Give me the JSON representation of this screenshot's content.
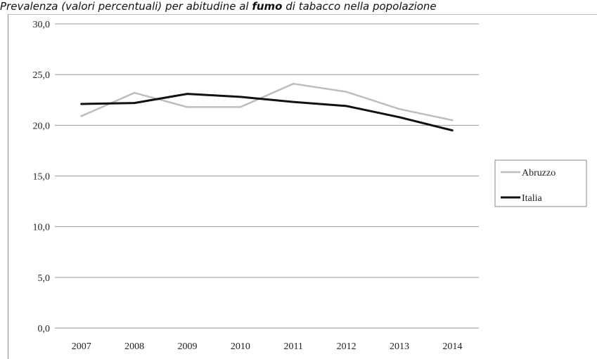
{
  "title": {
    "before": "Prevalenza (valori percentuali) per abitudine al ",
    "emphasis": "fumo",
    "after": " di tabacco nella popolazione"
  },
  "chart_data": {
    "type": "line",
    "categories": [
      "2007",
      "2008",
      "2009",
      "2010",
      "2011",
      "2012",
      "2013",
      "2014"
    ],
    "series": [
      {
        "name": "Abruzzo",
        "color": "#bdbdbd",
        "values": [
          20.9,
          23.2,
          21.8,
          21.8,
          24.1,
          23.3,
          21.6,
          20.5
        ]
      },
      {
        "name": "Italia",
        "color": "#111111",
        "values": [
          22.1,
          22.2,
          23.1,
          22.8,
          22.3,
          21.9,
          20.8,
          19.5
        ]
      }
    ],
    "ylim": [
      0,
      30
    ],
    "yticks": [
      "0,0",
      "5,0",
      "10,0",
      "15,0",
      "20,0",
      "25,0",
      "30,0"
    ],
    "grid": true,
    "legend_position": "right"
  }
}
